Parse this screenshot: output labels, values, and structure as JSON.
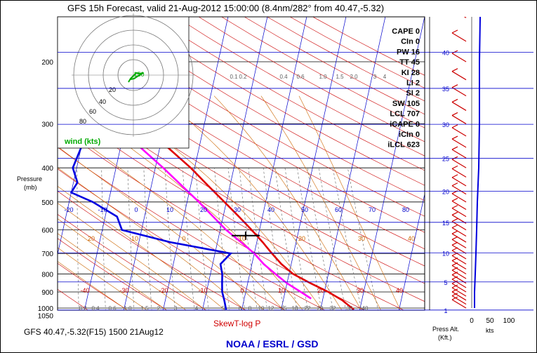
{
  "header": {
    "title": "GFS 15h Forecast, valid 21-Aug-2012 15:00:00 (8.4nm/282° from 40.47,-5.32)"
  },
  "footer": {
    "station": "GFS 40.47,-5.32(F15) 1500 21Aug12",
    "diagram_type": "SkewT-log P",
    "agency": "NOAA / ESRL / GSD"
  },
  "hodograph": {
    "label": "wind (kts)",
    "ring_labels": [
      "20",
      "40",
      "60",
      "80"
    ]
  },
  "indices": [
    {
      "name": "CAPE",
      "value": "0"
    },
    {
      "name": "CIn",
      "value": "0"
    },
    {
      "name": "PW",
      "value": "16"
    },
    {
      "name": "TT",
      "value": "45"
    },
    {
      "name": "KI",
      "value": "28"
    },
    {
      "name": "LI",
      "value": "2"
    },
    {
      "name": "SI",
      "value": "2"
    },
    {
      "name": "SW",
      "value": "105"
    },
    {
      "name": "LCL",
      "value": "707"
    },
    {
      "name": "iCAPE",
      "value": "0"
    },
    {
      "name": "iCIn",
      "value": "0"
    },
    {
      "name": "iLCL",
      "value": "623"
    }
  ],
  "labels": {
    "pressure_axis": "Pressure",
    "pressure_unit": "(mb)",
    "press_alt": "Press Alt.",
    "press_alt_unit": "(Kft.)",
    "kts": "kts"
  },
  "colors": {
    "temperature": "#e00000",
    "dewpoint": "#0000e0",
    "wet_bulb": "#ff00ff",
    "isotherm": "#0000cc",
    "dry_adiabat": "#cc0000",
    "moist_adiabat": "#cc6600",
    "mixing_ratio": "#606060",
    "hodograph": "#00aa00"
  },
  "chart_data": {
    "type": "line",
    "x_axis": "temperature",
    "y_axis": "Pressure (mb)",
    "y_log_scale": true,
    "ylim": [
      1050,
      130
    ],
    "pressure_ticks": [
      200,
      300,
      400,
      500,
      600,
      700,
      800,
      900,
      1000,
      1050
    ],
    "height_ticks_kft": [
      1,
      5,
      10,
      15,
      20,
      25,
      30,
      35,
      40
    ],
    "isotherm_labels": [
      "-40",
      "-30",
      "-20",
      "-10",
      "0",
      "10",
      "20",
      "30",
      "40"
    ],
    "upper_isotherm_labels": [
      "-20",
      "-10",
      "0",
      "10",
      "20",
      "30",
      "40",
      "50",
      "60",
      "70",
      "80"
    ],
    "moist_labels": [
      "20",
      "10",
      "0",
      "10",
      "20",
      "30",
      "40"
    ],
    "mixing_ratio_labels": [
      "0.2",
      "0.4",
      "0.6",
      "1.0",
      "1.5",
      "2",
      "3",
      "4",
      "5",
      "6",
      "8",
      "10",
      "12",
      "15",
      "18",
      "22",
      "28",
      "32",
      "36",
      "40"
    ],
    "upper_mixing_ratio_labels": [
      "0.1",
      "0.2",
      "0.4",
      "0.6",
      "1.0",
      "1.5",
      "2.0",
      "3",
      "4"
    ],
    "wind_axis_labels": [
      "0",
      "50",
      "100"
    ],
    "series": [
      {
        "name": "temperature",
        "points": [
          [
            1010,
            28.5
          ],
          [
            950,
            25
          ],
          [
            900,
            21
          ],
          [
            850,
            16
          ],
          [
            800,
            11
          ],
          [
            750,
            7.5
          ],
          [
            700,
            4.5
          ],
          [
            650,
            1.5
          ],
          [
            600,
            -2
          ],
          [
            550,
            -6
          ],
          [
            500,
            -10.5
          ],
          [
            450,
            -15.5
          ],
          [
            400,
            -21
          ],
          [
            350,
            -28
          ],
          [
            300,
            -36
          ],
          [
            250,
            -45
          ],
          [
            200,
            -55
          ],
          [
            150,
            -58
          ],
          [
            130,
            -58
          ]
        ]
      },
      {
        "name": "dewpoint",
        "points": [
          [
            1010,
            -4
          ],
          [
            950,
            -5
          ],
          [
            900,
            -6
          ],
          [
            850,
            -6.5
          ],
          [
            800,
            -7
          ],
          [
            750,
            -8
          ],
          [
            700,
            -6
          ],
          [
            650,
            -22
          ],
          [
            600,
            -35
          ],
          [
            550,
            -37
          ],
          [
            500,
            -44
          ],
          [
            470,
            -50
          ],
          [
            440,
            -49
          ],
          [
            400,
            -51
          ],
          [
            350,
            -50
          ],
          [
            300,
            -52
          ],
          [
            250,
            -59
          ],
          [
            200,
            -70
          ],
          [
            180,
            -72
          ],
          [
            150,
            -73
          ],
          [
            130,
            -74
          ]
        ]
      },
      {
        "name": "wet_bulb",
        "points": [
          [
            940,
            17
          ],
          [
            900,
            14
          ],
          [
            850,
            10
          ],
          [
            800,
            6.5
          ],
          [
            750,
            3
          ],
          [
            700,
            0
          ],
          [
            650,
            -4
          ],
          [
            600,
            -8.5
          ],
          [
            500,
            -17
          ],
          [
            400,
            -28
          ],
          [
            300,
            -43
          ],
          [
            250,
            -53
          ],
          [
            200,
            -64
          ],
          [
            150,
            -72
          ],
          [
            130,
            -74
          ]
        ]
      }
    ]
  }
}
